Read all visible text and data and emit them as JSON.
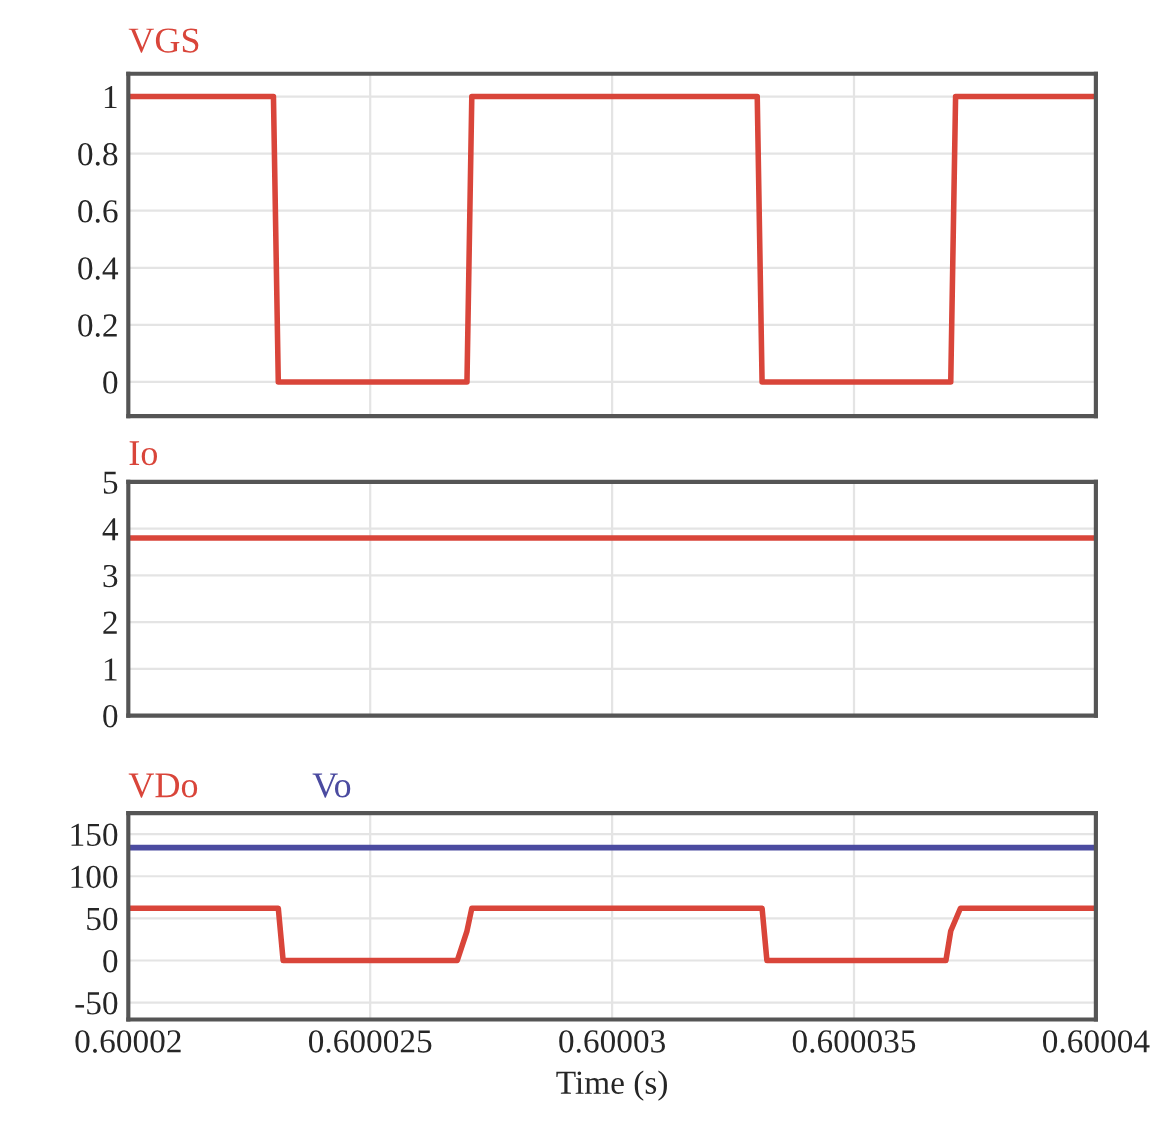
{
  "chart_data": [
    {
      "type": "line",
      "xlim": [
        0.60002,
        0.60004
      ],
      "xticks": [
        0.60002,
        0.600025,
        0.60003,
        0.600035,
        0.60004
      ],
      "ylim": [
        -0.12,
        1.08
      ],
      "yticks": [
        0,
        0.2,
        0.4,
        0.6,
        0.8,
        1
      ],
      "grid": true,
      "tick_labels": "y",
      "series": [
        {
          "name": "VGS",
          "color": "#d9453a",
          "x": [
            0.60002,
            0.600023,
            0.6000231,
            0.600027,
            0.6000271,
            0.600033,
            0.6000331,
            0.600037,
            0.6000371,
            0.60004
          ],
          "values": [
            1,
            1,
            0,
            0,
            1,
            1,
            0,
            0,
            1,
            1
          ]
        }
      ]
    },
    {
      "type": "line",
      "xlim": [
        0.60002,
        0.60004
      ],
      "xticks": [
        0.60002,
        0.600025,
        0.60003,
        0.600035,
        0.60004
      ],
      "ylim": [
        0,
        5
      ],
      "yticks": [
        0,
        1,
        2,
        3,
        4,
        5
      ],
      "grid": true,
      "tick_labels": "y",
      "series": [
        {
          "name": "Io",
          "color": "#d9453a",
          "x": [
            0.60002,
            0.60004
          ],
          "values": [
            3.8,
            3.8
          ]
        }
      ]
    },
    {
      "type": "line",
      "xlim": [
        0.60002,
        0.60004
      ],
      "xticks": [
        0.60002,
        0.600025,
        0.60003,
        0.600035,
        0.60004
      ],
      "ylim": [
        -70,
        175
      ],
      "yticks": [
        -50,
        0,
        50,
        100,
        150
      ],
      "grid": true,
      "xlabel": "Time (s)",
      "series": [
        {
          "name": "VDo",
          "color": "#d9453a",
          "x": [
            0.60002,
            0.6000231,
            0.6000232,
            0.6000268,
            0.600027,
            0.6000271,
            0.6000331,
            0.6000332,
            0.6000369,
            0.600037,
            0.6000372,
            0.60004
          ],
          "values": [
            62,
            62,
            0,
            0,
            35,
            62,
            62,
            0,
            0,
            35,
            62,
            62
          ]
        },
        {
          "name": "Vo",
          "color": "#4b4ba0",
          "x": [
            0.60002,
            0.60004
          ],
          "values": [
            134,
            134
          ]
        }
      ]
    }
  ]
}
